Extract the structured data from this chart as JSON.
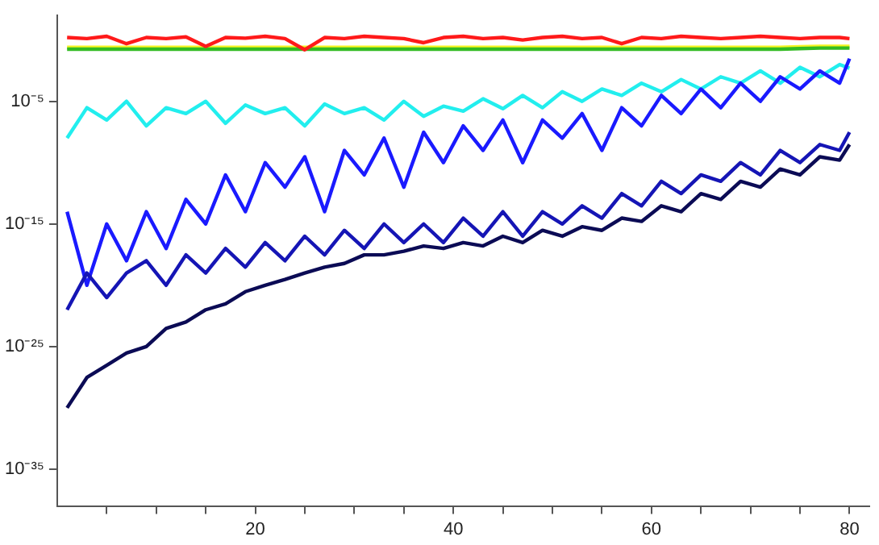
{
  "chart_data": {
    "type": "line",
    "x": [
      1,
      3,
      5,
      7,
      9,
      11,
      13,
      15,
      17,
      19,
      21,
      23,
      25,
      27,
      29,
      31,
      33,
      35,
      37,
      39,
      41,
      43,
      45,
      47,
      49,
      51,
      53,
      55,
      57,
      59,
      61,
      63,
      65,
      67,
      69,
      71,
      73,
      75,
      77,
      79,
      80
    ],
    "series": [
      {
        "color": "#0b0b55",
        "values": [
          1e-30,
          3e-28,
          3e-27,
          3e-26,
          1e-25,
          3e-24,
          1e-23,
          1e-22,
          3e-22,
          3e-21,
          1e-20,
          3e-20,
          1e-19,
          3e-19,
          6e-19,
          3e-18,
          3e-18,
          6e-18,
          1.6e-17,
          1e-17,
          3e-17,
          1.6e-17,
          1e-16,
          3e-17,
          3e-16,
          1e-16,
          6e-16,
          3e-16,
          3e-15,
          1.6e-15,
          3e-14,
          1e-14,
          3e-13,
          1e-13,
          3e-12,
          1e-12,
          3e-11,
          1e-11,
          3e-10,
          1.6e-10,
          3e-09
        ]
      },
      {
        "color": "#1515b5",
        "values": [
          1e-22,
          1e-19,
          1e-21,
          1e-19,
          1e-18,
          1e-20,
          3e-18,
          1e-19,
          1e-17,
          3e-19,
          3e-17,
          1e-18,
          1e-16,
          3e-18,
          3e-16,
          1e-17,
          1e-15,
          3e-17,
          1e-15,
          3e-17,
          3e-15,
          1e-16,
          1e-14,
          1e-16,
          1e-14,
          1e-15,
          3e-14,
          3e-15,
          3e-13,
          3e-14,
          3e-12,
          3e-13,
          1e-11,
          3e-12,
          1e-10,
          1e-11,
          1e-09,
          1e-10,
          3e-09,
          1e-09,
          3e-08
        ]
      },
      {
        "color": "#1a1aff",
        "values": [
          1e-14,
          1e-20,
          1e-15,
          1e-18,
          1e-14,
          1e-17,
          1e-13,
          1e-15,
          1e-11,
          1e-14,
          1e-10,
          1e-12,
          3e-10,
          1e-14,
          1e-09,
          1e-11,
          1e-08,
          1e-12,
          3e-08,
          1e-10,
          1e-07,
          1e-09,
          3e-07,
          1e-10,
          3e-07,
          1e-08,
          1e-06,
          1e-09,
          3e-06,
          1e-07,
          3e-05,
          1e-06,
          0.0001,
          3e-06,
          0.0003,
          1e-05,
          0.001,
          0.0001,
          0.003,
          0.0003,
          0.03
        ]
      },
      {
        "color": "#22eeee",
        "values": [
          1e-08,
          3e-06,
          3e-07,
          1e-05,
          1e-07,
          3e-06,
          1e-06,
          1e-05,
          1.6e-07,
          5e-06,
          1e-06,
          3e-06,
          1e-07,
          6e-06,
          1e-06,
          3e-06,
          3e-07,
          1e-05,
          6e-07,
          4e-06,
          1.6e-06,
          1.6e-05,
          2.5e-06,
          3e-05,
          3e-06,
          6e-05,
          1e-05,
          0.0001,
          3e-05,
          0.0003,
          6e-05,
          0.0006,
          0.0001,
          0.001,
          0.0003,
          0.003,
          0.0003,
          0.006,
          0.001,
          0.01,
          0.005
        ]
      },
      {
        "color": "#ff1a1a",
        "values": [
          1.6,
          1.3,
          2,
          0.5,
          1.6,
          1.3,
          1.8,
          0.3,
          1.6,
          1.4,
          2,
          1.3,
          0.16,
          1.6,
          1.3,
          2,
          1.6,
          1.3,
          0.6,
          1.6,
          2,
          1.3,
          1.6,
          1,
          1.6,
          2,
          1.3,
          1.6,
          0.5,
          1.6,
          1.3,
          2,
          1.6,
          1.3,
          1.6,
          2,
          1.6,
          1.3,
          1.6,
          1.6,
          1.3
        ]
      },
      {
        "color": "#33bb22",
        "values": [
          0.18,
          0.18,
          0.18,
          0.18,
          0.18,
          0.18,
          0.18,
          0.18,
          0.18,
          0.18,
          0.18,
          0.18,
          0.18,
          0.18,
          0.18,
          0.18,
          0.18,
          0.18,
          0.18,
          0.18,
          0.18,
          0.18,
          0.18,
          0.18,
          0.18,
          0.18,
          0.18,
          0.18,
          0.18,
          0.18,
          0.18,
          0.18,
          0.18,
          0.18,
          0.18,
          0.18,
          0.18,
          0.2,
          0.22,
          0.22,
          0.22
        ]
      },
      {
        "color": "#f5f522",
        "values": [
          0.25,
          0.25,
          0.25,
          0.25,
          0.25,
          0.25,
          0.25,
          0.25,
          0.25,
          0.25,
          0.25,
          0.25,
          0.25,
          0.25,
          0.25,
          0.25,
          0.25,
          0.25,
          0.25,
          0.25,
          0.25,
          0.25,
          0.25,
          0.25,
          0.25,
          0.25,
          0.25,
          0.25,
          0.25,
          0.25,
          0.25,
          0.25,
          0.25,
          0.25,
          0.25,
          0.25,
          0.25,
          0.28,
          0.3,
          0.3,
          0.3
        ]
      }
    ],
    "log": "y",
    "xlim": [
      0,
      82
    ],
    "xticks": [
      {
        "value": 5,
        "label": null
      },
      {
        "value": 10,
        "label": null
      },
      {
        "value": 15,
        "label": null
      },
      20,
      {
        "value": 25,
        "label": null
      },
      {
        "value": 30,
        "label": null
      },
      {
        "value": 35,
        "label": null
      },
      40,
      {
        "value": 45,
        "label": null
      },
      {
        "value": 50,
        "label": null
      },
      {
        "value": 55,
        "label": null
      },
      60,
      {
        "value": 65,
        "label": null
      },
      {
        "value": 70,
        "label": null
      },
      {
        "value": 75,
        "label": null
      },
      80
    ],
    "ylim": [
      1e-38,
      100
    ],
    "yticks": [
      {
        "value": 1e-35,
        "label": "10⁻³⁵"
      },
      {
        "value": 1e-25,
        "label": "10⁻²⁵"
      },
      {
        "value": 1e-15,
        "label": "10⁻¹⁵"
      },
      {
        "value": 1e-05,
        "label": "10⁻⁵"
      }
    ],
    "grid": false,
    "legend": false,
    "marker": "none",
    "line_style": "solid"
  }
}
